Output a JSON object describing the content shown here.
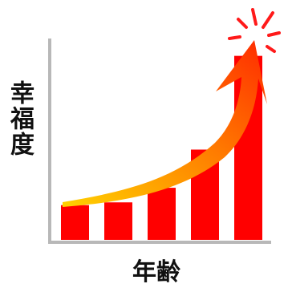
{
  "chart_data": {
    "type": "bar",
    "ylabel": "幸福度",
    "xlabel": "年齢",
    "values": [
      1,
      1.08,
      1.5,
      2.6,
      5.3
    ],
    "ylim": [
      0,
      5.8
    ],
    "trend": "rising",
    "colors": {
      "bar": "#ff0000",
      "arrow_start": "#ffd200",
      "arrow_end": "#ff2a00",
      "burst": "#ff1a1a",
      "axis": "#b8b8b8"
    }
  }
}
